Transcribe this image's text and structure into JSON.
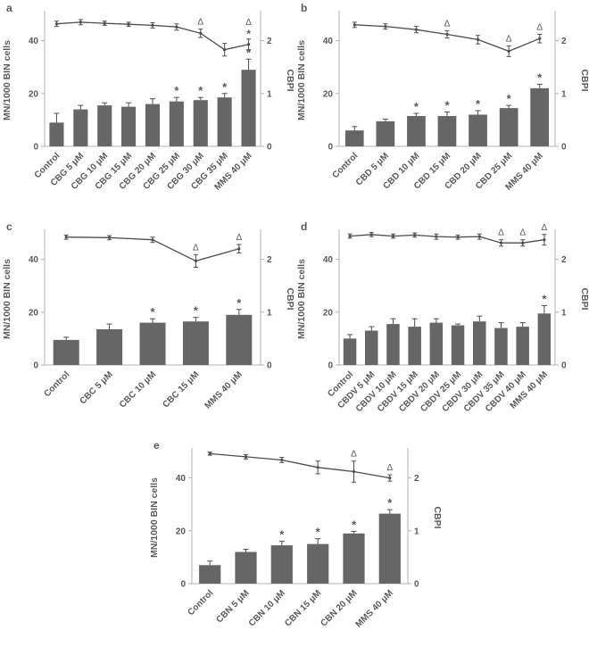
{
  "axes": {
    "left_label": "MN/1000 BIN cells",
    "right_label": "CBPI",
    "left_ticks": [
      0,
      20,
      40
    ],
    "right_ticks": [
      0,
      1,
      2
    ],
    "left_max": 50,
    "right_max": 2.5
  },
  "chart_data": [
    {
      "type": "bar+line",
      "panel": "a",
      "categories": [
        "Control",
        "CBG 5 μM",
        "CBG 10 μM",
        "CBG 15 μM",
        "CBG 20 μM",
        "CBG 25 μM",
        "CBG 30 μM",
        "CBG 35 μM",
        "MMS 40 μM"
      ],
      "bars": {
        "name": "MN/1000 BIN cells",
        "values": [
          9,
          14,
          15.5,
          15,
          16,
          17,
          17.5,
          18.5,
          29
        ],
        "errors": [
          3.5,
          1.5,
          1,
          1.5,
          2,
          1.5,
          1,
          1.5,
          4
        ],
        "star": [
          5,
          6,
          7,
          8
        ]
      },
      "line": {
        "name": "CBPI",
        "values": [
          2.32,
          2.35,
          2.33,
          2.31,
          2.29,
          2.26,
          2.14,
          1.83,
          1.93
        ],
        "errors": [
          0.05,
          0.05,
          0.04,
          0.04,
          0.05,
          0.06,
          0.08,
          0.12,
          0.1
        ],
        "delta": [
          6,
          8
        ],
        "star": [
          8
        ]
      }
    },
    {
      "type": "bar+line",
      "panel": "b",
      "categories": [
        "Control",
        "CBD 5 μM",
        "CBD 10 μM",
        "CBD 15 μM",
        "CBD 20 μM",
        "CBD 25 μM",
        "MMS 40 μM"
      ],
      "bars": {
        "name": "MN/1000 BIN cells",
        "values": [
          6,
          9.5,
          11.5,
          11.5,
          12,
          14.5,
          22
        ],
        "errors": [
          1.5,
          0.8,
          1,
          1.5,
          1.5,
          1,
          1.5
        ],
        "star": [
          2,
          3,
          4,
          5,
          6
        ]
      },
      "line": {
        "name": "CBPI",
        "values": [
          2.3,
          2.27,
          2.21,
          2.12,
          2.02,
          1.8,
          2.04
        ],
        "errors": [
          0.05,
          0.05,
          0.06,
          0.07,
          0.08,
          0.1,
          0.08
        ],
        "delta": [
          3,
          5,
          6
        ],
        "star": []
      }
    },
    {
      "type": "bar+line",
      "panel": "c",
      "categories": [
        "Control",
        "CBC 5 μM",
        "CBC 10 μM",
        "CBC 15 μM",
        "MMS 40 μM"
      ],
      "bars": {
        "name": "MN/1000 BIN cells",
        "values": [
          9.5,
          13.5,
          16,
          16.5,
          19
        ],
        "errors": [
          1,
          2,
          1.5,
          1.5,
          2
        ],
        "star": [
          2,
          3,
          4
        ]
      },
      "line": {
        "name": "CBPI",
        "values": [
          2.42,
          2.41,
          2.37,
          1.97,
          2.2
        ],
        "errors": [
          0.04,
          0.04,
          0.05,
          0.12,
          0.08
        ],
        "delta": [
          3,
          4
        ],
        "star": []
      }
    },
    {
      "type": "bar+line",
      "panel": "d",
      "categories": [
        "Control",
        "CBDV 5 μM",
        "CBDV 10 μM",
        "CBDV 15 μM",
        "CBDV 20 μM",
        "CBDV 25 μM",
        "CBDV 30 μM",
        "CBDV 35 μM",
        "CBDV 40 μM",
        "MMS 40 μM"
      ],
      "bars": {
        "name": "MN/1000 BIN cells",
        "values": [
          10,
          13,
          15.5,
          14.5,
          16,
          15,
          16.5,
          14,
          14.5,
          19.5
        ],
        "errors": [
          1.5,
          1.5,
          2,
          3,
          1.5,
          0.5,
          2,
          2,
          1.5,
          3
        ],
        "star": [
          9
        ]
      },
      "line": {
        "name": "CBPI",
        "values": [
          2.44,
          2.47,
          2.44,
          2.46,
          2.43,
          2.42,
          2.43,
          2.31,
          2.31,
          2.37
        ],
        "errors": [
          0.04,
          0.04,
          0.04,
          0.04,
          0.05,
          0.04,
          0.05,
          0.06,
          0.06,
          0.1
        ],
        "delta": [
          7,
          8,
          9
        ],
        "star": []
      }
    },
    {
      "type": "bar+line",
      "panel": "e",
      "categories": [
        "Control",
        "CBN 5 μM",
        "CBN 10 μM",
        "CBN 15 μM",
        "CBN 20 μM",
        "MMS 40 μM"
      ],
      "bars": {
        "name": "MN/1000 BIN cells",
        "values": [
          7,
          12,
          14.5,
          15,
          19,
          26.5
        ],
        "errors": [
          1.5,
          1,
          1.5,
          2,
          0.8,
          1.5
        ],
        "star": [
          2,
          3,
          4,
          5
        ]
      },
      "line": {
        "name": "CBPI",
        "values": [
          2.46,
          2.4,
          2.34,
          2.2,
          2.12,
          2.0
        ],
        "errors": [
          0.03,
          0.04,
          0.05,
          0.12,
          0.2,
          0.06
        ],
        "delta": [
          4,
          5
        ],
        "star": []
      }
    }
  ],
  "colors": {
    "bar": "#666666",
    "line": "#4d4d4d",
    "axis": "#b3b3b3",
    "text": "#595959",
    "annotation": "#3d3d3d"
  }
}
